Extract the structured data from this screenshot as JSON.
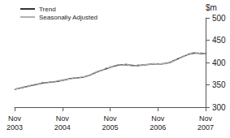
{
  "chart_data": {
    "type": "line",
    "y_label": "$m",
    "categories": [
      "Nov 2003",
      null,
      null,
      null,
      null,
      null,
      null,
      null,
      null,
      null,
      null,
      null,
      "Nov 2004",
      null,
      null,
      null,
      null,
      null,
      null,
      null,
      null,
      null,
      null,
      null,
      "Nov 2005",
      null,
      null,
      null,
      null,
      null,
      null,
      null,
      null,
      null,
      null,
      null,
      "Nov 2006",
      null,
      null,
      null,
      null,
      null,
      null,
      null,
      null,
      null,
      null,
      null,
      "Nov 2007"
    ],
    "series": [
      {
        "name": "Trend",
        "color": "#333333",
        "values": [
          340,
          342,
          344,
          346,
          348,
          350,
          352,
          354,
          355,
          356,
          357,
          358,
          360,
          362,
          364,
          365,
          366,
          367,
          369,
          372,
          376,
          380,
          383,
          386,
          389,
          392,
          394,
          395,
          395,
          394,
          393,
          393,
          394,
          395,
          396,
          397,
          397,
          397,
          398,
          400,
          404,
          408,
          412,
          416,
          419,
          421,
          421,
          420,
          420
        ]
      },
      {
        "name": "Seasonally Adjusted",
        "color": "#b0b0b0",
        "values": [
          341,
          341,
          345,
          345,
          349,
          351,
          351,
          356,
          354,
          357,
          356,
          360,
          359,
          363,
          363,
          366,
          365,
          368,
          368,
          373,
          375,
          381,
          382,
          388,
          388,
          393,
          395,
          394,
          397,
          393,
          392,
          395,
          393,
          396,
          395,
          398,
          396,
          398,
          397,
          401,
          403,
          410,
          411,
          417,
          418,
          423,
          420,
          422,
          419
        ]
      }
    ],
    "ylim": [
      300,
      500
    ],
    "yticks": [
      300,
      350,
      400,
      450,
      500
    ],
    "legend": "top-left",
    "grid": false
  }
}
